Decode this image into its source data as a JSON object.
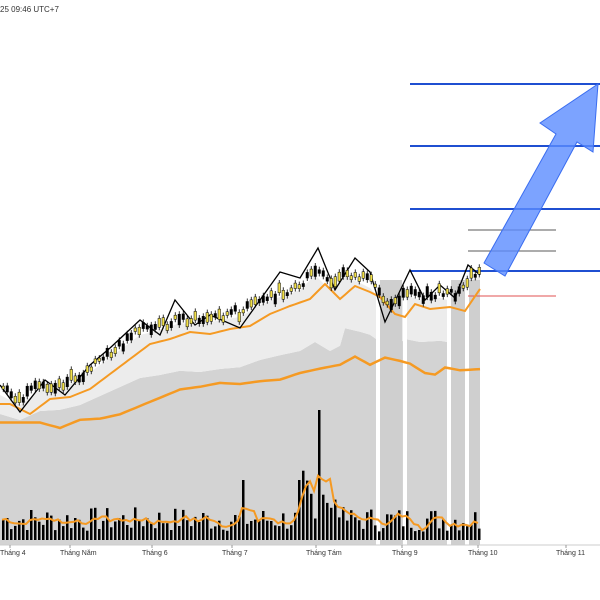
{
  "header": {
    "timestamp_text": "25 09:46 UTC+7"
  },
  "chart_data": {
    "type": "candlestick",
    "x_tick_labels": [
      "Tháng 4",
      "Tháng Năm",
      "Tháng 6",
      "Tháng 7",
      "Tháng Tám",
      "Tháng 9",
      "Tháng 10",
      "Tháng 11"
    ],
    "grid": false,
    "colors": {
      "up_candle": "#f2e14a",
      "down_candle": "#000000",
      "ma_short": "#f59a23",
      "ma_long": "#f59a23",
      "zigzag": "#000000",
      "level_lines": "#1f4fd1",
      "target_arrow": "#5b8cff",
      "area_fill": "#d3d3d3",
      "volume_bars": "#000000",
      "volume_ma": "#f59a23",
      "red_line": "#e05050"
    },
    "horizontal_levels": [
      {
        "style": "blue-thick",
        "y": 0.0
      },
      {
        "style": "blue-thick",
        "y": 0.0
      }
    ]
  },
  "icons": {
    "target_arrow": "up-right-arrow"
  }
}
